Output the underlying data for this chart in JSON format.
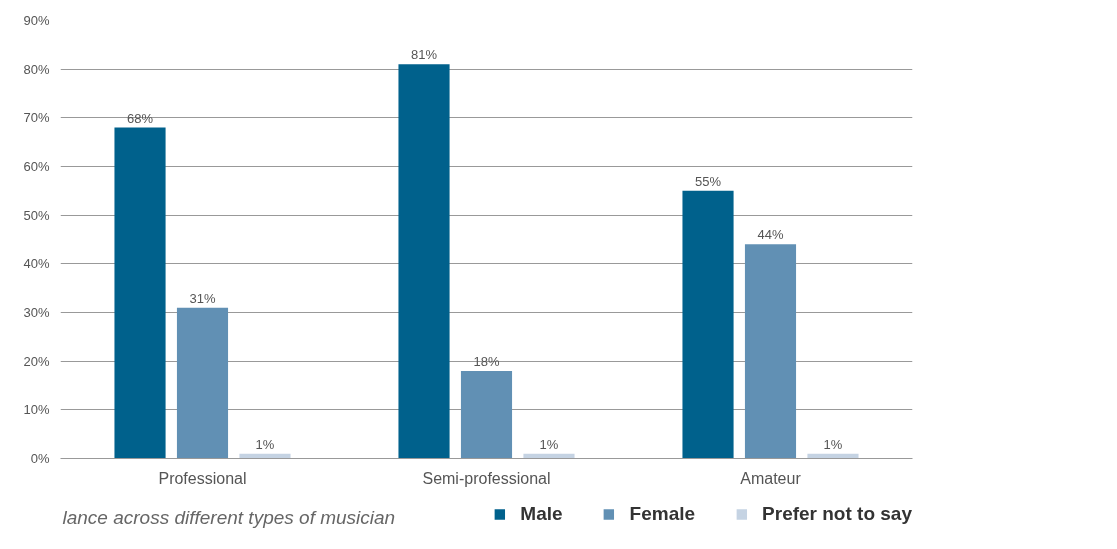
{
  "chart_data": {
    "type": "bar",
    "categories": [
      "Professional",
      "Semi-professional",
      "Amateur"
    ],
    "series": [
      {
        "name": "Male",
        "color": "#00618c",
        "values": [
          68,
          81,
          55
        ],
        "value_labels": [
          "68%",
          "81%",
          "55%"
        ]
      },
      {
        "name": "Female",
        "color": "#6190b4",
        "values": [
          31,
          18,
          44
        ],
        "value_labels": [
          "31%",
          "18%",
          "44%"
        ]
      },
      {
        "name": "Prefer not to say",
        "color": "#c5d3e3",
        "values": [
          1,
          1,
          1
        ],
        "value_labels": [
          "1%",
          "1%",
          "1%"
        ]
      }
    ],
    "ylim": [
      0,
      90
    ],
    "yticks": [
      {
        "value": 0,
        "label": "0%"
      },
      {
        "value": 10,
        "label": "10%"
      },
      {
        "value": 20,
        "label": "20%"
      },
      {
        "value": 30,
        "label": "30%"
      },
      {
        "value": 40,
        "label": "40%"
      },
      {
        "value": 50,
        "label": "50%"
      },
      {
        "value": 60,
        "label": "60%"
      },
      {
        "value": 70,
        "label": "70%"
      },
      {
        "value": 80,
        "label": "80%"
      },
      {
        "value": 90,
        "label": "90%"
      }
    ],
    "grid": "y",
    "legend": "bottom right",
    "annotations": [
      "lance across different types of musician"
    ]
  }
}
